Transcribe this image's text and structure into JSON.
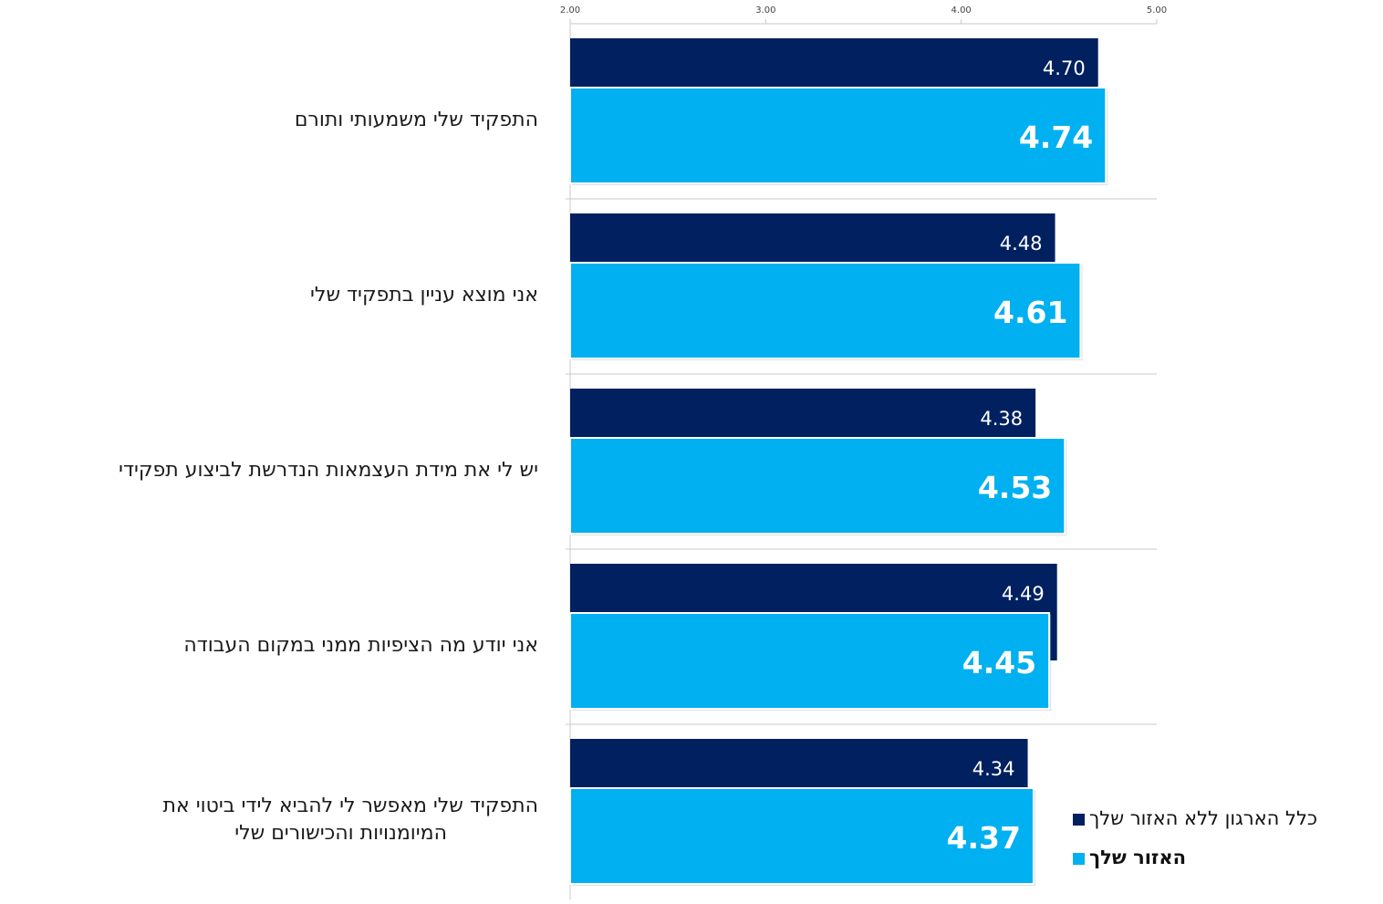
{
  "chart_data": {
    "type": "bar",
    "orientation": "horizontal",
    "categories": [
      "התפקיד שלי משמעותי ותורם",
      "אני מוצא עניין בתפקיד שלי",
      "יש לי את מידת העצמאות הנדרשת לביצוע תפקידי",
      "אני יודע מה הציפיות ממני במקום העבודה",
      "התפקיד שלי מאפשר לי להביא לידי ביטוי את המיומנויות והכישורים שלי"
    ],
    "category_lines": [
      [
        "התפקיד שלי משמעותי ותורם"
      ],
      [
        "אני מוצא עניין בתפקיד שלי"
      ],
      [
        "יש לי את מידת העצמאות הנדרשת לביצוע תפקידי"
      ],
      [
        "אני יודע מה הציפיות ממני במקום העבודה"
      ],
      [
        "התפקיד שלי מאפשר לי להביא לידי ביטוי את",
        "המיומנויות והכישורים שלי"
      ]
    ],
    "series": [
      {
        "name": "כלל הארגון ללא האזור שלך",
        "color": "#002060",
        "values": [
          4.7,
          4.48,
          4.38,
          4.49,
          4.34
        ],
        "labels": [
          "4.70",
          "4.48",
          "4.38",
          "4.49",
          "4.34"
        ]
      },
      {
        "name": "האזור שלך",
        "color": "#00B0F0",
        "values": [
          4.74,
          4.61,
          4.53,
          4.45,
          4.37
        ],
        "labels": [
          "4.74",
          "4.61",
          "4.53",
          "4.45",
          "4.37"
        ]
      }
    ],
    "xlim": [
      2,
      5
    ],
    "ticks": [
      2,
      3,
      4,
      5
    ],
    "tick_labels": [
      "2.00",
      "3.00",
      "4.00",
      "5.00"
    ],
    "axis_position": "top",
    "grid": true,
    "legend_position": "bottom-right"
  }
}
